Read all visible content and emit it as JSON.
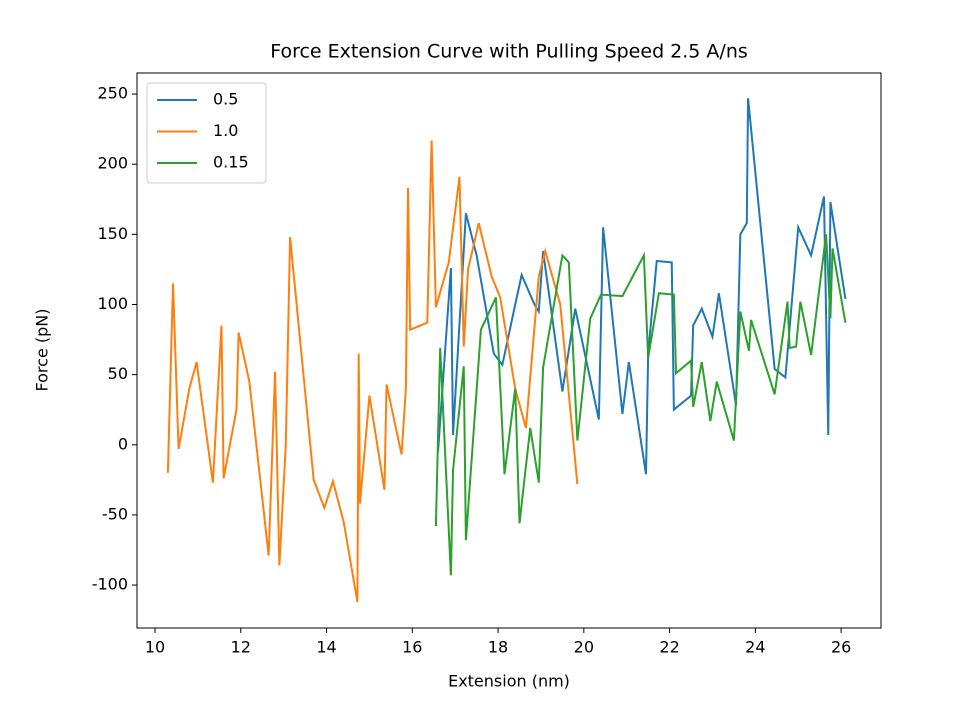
{
  "chart_data": {
    "type": "line",
    "title": "Force Extension Curve with Pulling Speed 2.5 A/ns",
    "x_label": "Extension (nm)",
    "y_label": "Force (pN)",
    "xlim": [
      9.58,
      26.93
    ],
    "ylim": [
      -130.6,
      265
    ],
    "xticks": [
      10,
      12,
      14,
      16,
      18,
      20,
      22,
      24,
      26
    ],
    "yticks": [
      -100,
      -50,
      0,
      50,
      100,
      150,
      200,
      250
    ],
    "legend": "upper left",
    "series": [
      {
        "name": "0.5",
        "color": "#1f77b4",
        "x": [
          16.6,
          16.9,
          16.95,
          17.25,
          17.5,
          17.9,
          18.1,
          18.4,
          18.55,
          18.85,
          18.95,
          19.05,
          19.5,
          19.8,
          20.35,
          20.45,
          20.9,
          21.05,
          21.45,
          21.5,
          21.7,
          22.05,
          22.1,
          22.5,
          22.55,
          22.75,
          23.0,
          23.15,
          23.55,
          23.65,
          23.8,
          23.83,
          24.45,
          24.7,
          25.0,
          25.3,
          25.6,
          25.7,
          25.75,
          26.1
        ],
        "values": [
          -5,
          126,
          7,
          165,
          135,
          65,
          57,
          100,
          121,
          100,
          95,
          138,
          38,
          97,
          18,
          155,
          22,
          59,
          -21,
          65,
          131,
          130,
          25,
          35,
          85,
          97,
          77,
          108,
          28,
          150,
          158,
          247,
          54,
          48,
          155,
          135,
          177,
          7,
          173,
          104
        ]
      },
      {
        "name": "1.0",
        "color": "#ff7f0e",
        "x": [
          10.3,
          10.42,
          10.55,
          10.8,
          10.97,
          11.35,
          11.55,
          11.6,
          11.9,
          11.95,
          12.2,
          12.65,
          12.8,
          12.9,
          13.05,
          13.15,
          13.7,
          13.95,
          14.15,
          14.4,
          14.72,
          14.75,
          14.78,
          15.0,
          15.35,
          15.4,
          15.75,
          15.85,
          15.9,
          15.95,
          16.35,
          16.45,
          16.55,
          16.85,
          17.1,
          17.2,
          17.3,
          17.55,
          17.85,
          18.05,
          18.4,
          18.65,
          18.95,
          19.1,
          19.45,
          19.85
        ],
        "values": [
          -20,
          115,
          -3,
          40,
          59,
          -27,
          85,
          -24,
          25,
          80,
          45,
          -79,
          52,
          -86,
          0,
          148,
          -25,
          -45,
          -26,
          -55,
          -112,
          65,
          -42,
          35,
          -32,
          43,
          -7,
          40,
          183,
          82,
          87,
          217,
          98,
          130,
          191,
          70,
          125,
          158,
          120,
          105,
          40,
          12,
          120,
          138,
          100,
          -28
        ]
      },
      {
        "name": "0.15",
        "color": "#2ca02c",
        "x": [
          16.55,
          16.65,
          16.9,
          16.95,
          17.2,
          17.25,
          17.6,
          17.95,
          18.15,
          18.4,
          18.5,
          18.75,
          18.95,
          19.05,
          19.5,
          19.65,
          19.85,
          20.15,
          20.4,
          20.9,
          21.4,
          21.5,
          21.75,
          22.1,
          22.15,
          22.5,
          22.55,
          22.75,
          22.95,
          23.1,
          23.5,
          23.65,
          23.85,
          23.9,
          24.45,
          24.75,
          24.8,
          24.95,
          25.05,
          25.3,
          25.65,
          25.75,
          25.8,
          26.1
        ],
        "values": [
          -58,
          69,
          -93,
          -18,
          56,
          -68,
          82,
          105,
          -21,
          40,
          -56,
          12,
          -27,
          55,
          135,
          130,
          3,
          90,
          107,
          106,
          135,
          62,
          108,
          107,
          51,
          60,
          27,
          59,
          17,
          45,
          3,
          95,
          67,
          89,
          36,
          102,
          69,
          70,
          102,
          64,
          150,
          90,
          140,
          87
        ]
      }
    ]
  }
}
